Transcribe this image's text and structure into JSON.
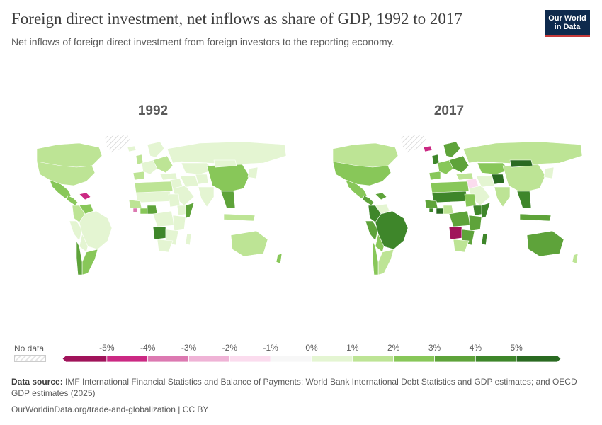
{
  "header": {
    "title": "Foreign direct investment, net inflows as share of GDP, 1992 to 2017",
    "subtitle": "Net inflows of foreign direct investment from foreign investors to the reporting economy."
  },
  "logo": {
    "line1": "Our World",
    "line2": "in Data"
  },
  "maps": [
    {
      "year": "1992",
      "regions": {
        "north_america": 1.5,
        "canada": 1.2,
        "greenland": null,
        "mexico": 2.2,
        "central_america": 2.4,
        "caribbean": -4.5,
        "venezuela": 2.0,
        "colombia": 1.3,
        "peru": 0.5,
        "bolivia": 0.9,
        "brazil": 0.4,
        "southern_cone": 2.1,
        "chile": 3.5,
        "uk_ireland": 1.5,
        "iberia": 1.6,
        "western_europe": 0.9,
        "scandinavia": 0.6,
        "iceland": 0.3,
        "eastern_europe": 1.6,
        "russia": 0.6,
        "kazakhstan": 0.8,
        "turkey": 0.6,
        "middle_east": 0.9,
        "arabia": 0.7,
        "iran": 0.2,
        "central_asia": 0.8,
        "north_africa": 1.5,
        "sahel": 0.9,
        "west_africa": 1.8,
        "liberia": -3.2,
        "ghana_coast": 2.3,
        "nigeria": 3.2,
        "central_africa": 0.6,
        "sudan": 0.1,
        "ethiopia": 0.3,
        "horn_of_africa": 3.5,
        "east_africa": 0.9,
        "angola": 4.2,
        "southern_africa": 0.8,
        "south_africa": 0.2,
        "madagascar": 0.5,
        "india": 0.2,
        "china": 2.8,
        "mongolia": 0.6,
        "southeast_asia": 3.2,
        "indonesia": 1.4,
        "japan_korea": 0.4,
        "australia": 1.7,
        "new_zealand": 2.0
      }
    },
    {
      "year": "2017",
      "regions": {
        "north_america": 2.0,
        "canada": 1.4,
        "greenland": null,
        "mexico": 2.8,
        "central_america": 3.2,
        "caribbean": 3.2,
        "venezuela": 0.8,
        "colombia": 4.4,
        "peru": 3.5,
        "bolivia": 2.3,
        "brazil": 4.2,
        "southern_cone": 1.6,
        "chile": 2.6,
        "uk_ireland": 4.5,
        "iberia": 2.6,
        "western_europe": 2.4,
        "scandinavia": 3.4,
        "iceland": -5.0,
        "eastern_europe": 3.2,
        "russia": 1.9,
        "kazakhstan": 2.6,
        "turkey": 1.2,
        "middle_east": -1.5,
        "arabia": 0.7,
        "iran": 0.8,
        "central_asia": 5.2,
        "north_africa": 2.6,
        "sahel": 4.4,
        "west_africa": 3.2,
        "liberia": 4.6,
        "ghana_coast": 5.5,
        "nigeria": 1.2,
        "central_africa": 3.3,
        "sudan": 2.4,
        "ethiopia": 4.6,
        "horn_of_africa": 4.3,
        "east_africa": 3.1,
        "angola": -5.8,
        "southern_africa": 3.2,
        "south_africa": 1.4,
        "madagascar": 4.2,
        "india": 1.5,
        "china": 1.3,
        "mongolia": 5.8,
        "southeast_asia": 4.8,
        "indonesia": 3.2,
        "japan_korea": 0.6,
        "australia": 3.3,
        "new_zealand": 1.8
      }
    }
  ],
  "legend": {
    "no_data_label": "No data",
    "tick_labels": [
      "-5%",
      "-4%",
      "-3%",
      "-2%",
      "-1%",
      "0%",
      "1%",
      "2%",
      "3%",
      "4%",
      "5%"
    ],
    "bin_colors": [
      "#a0135a",
      "#cb2983",
      "#dc79b1",
      "#efb3d6",
      "#fbdcee",
      "#f7f7f7",
      "#e4f5d2",
      "#bde495",
      "#88c759",
      "#5ea33a",
      "#3e862a",
      "#2a6a21"
    ],
    "nodata_color": "#eeeeee"
  },
  "source": {
    "label": "Data source:",
    "text": "IMF International Financial Statistics and Balance of Payments; World Bank International Debt Statistics and GDP estimates; and OECD GDP estimates (2025)"
  },
  "footer": {
    "text": "OurWorldinData.org/trade-and-globalization | CC BY"
  }
}
